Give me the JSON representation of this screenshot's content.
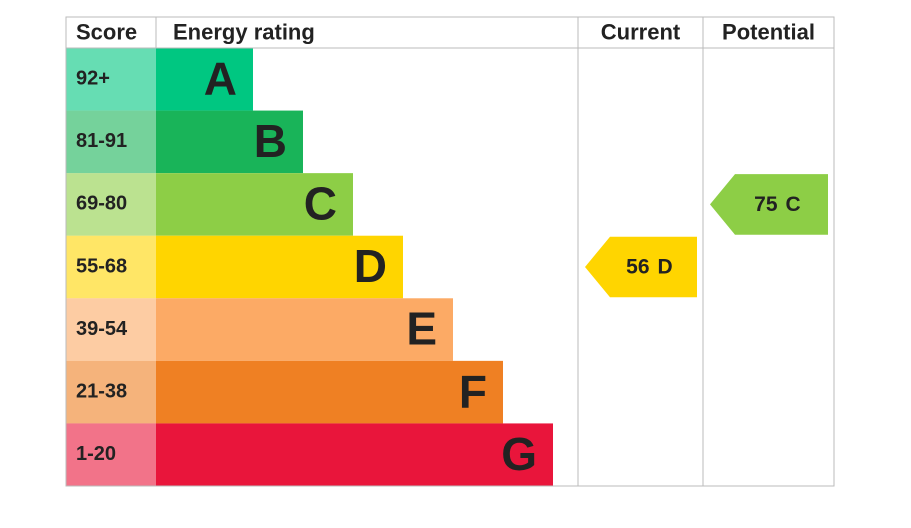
{
  "chart_data": {
    "type": "epc",
    "headers": [
      "Score",
      "Energy rating",
      "Current",
      "Potential"
    ],
    "bands": [
      {
        "score": "92+",
        "letter": "A",
        "color": "#00c781"
      },
      {
        "score": "81-91",
        "letter": "B",
        "color": "#19b459"
      },
      {
        "score": "69-80",
        "letter": "C",
        "color": "#8dce46"
      },
      {
        "score": "55-68",
        "letter": "D",
        "color": "#ffd500"
      },
      {
        "score": "39-54",
        "letter": "E",
        "color": "#fcaa65"
      },
      {
        "score": "21-38",
        "letter": "F",
        "color": "#ef8023"
      },
      {
        "score": "1-20",
        "letter": "G",
        "color": "#e9153b"
      }
    ],
    "current": {
      "value": 56,
      "rating": "D"
    },
    "potential": {
      "value": 75,
      "rating": "C"
    }
  }
}
